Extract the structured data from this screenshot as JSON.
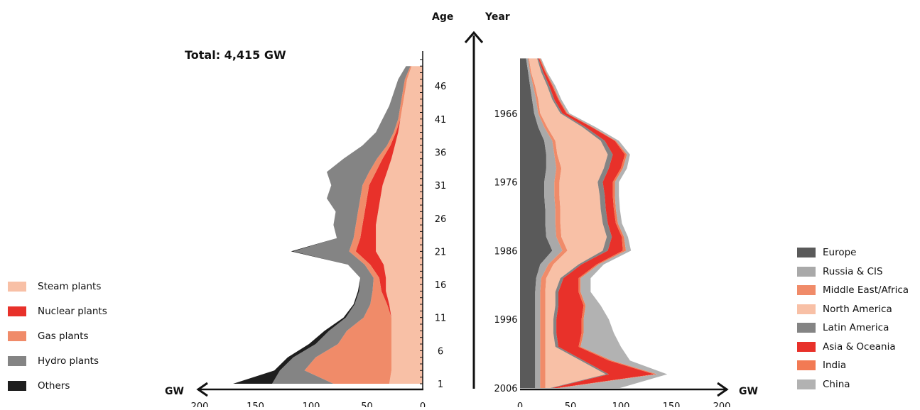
{
  "total_label": "Total: 4,415 GW",
  "axis": {
    "age_label": "Age",
    "year_label": "Year",
    "gw_left": "GW",
    "gw_right": "GW"
  },
  "chart_data": [
    {
      "type": "area",
      "title": "",
      "orientation": "horizontal-stacked-mirrored",
      "xlabel": "GW",
      "ylabel": "Age",
      "xlim": [
        200,
        0
      ],
      "ylim": [
        0,
        50
      ],
      "x_ticks": [
        200,
        150,
        100,
        50,
        0
      ],
      "y_ticks": [
        1,
        6,
        11,
        16,
        21,
        26,
        31,
        36,
        41,
        46
      ],
      "legend_position": "left",
      "ages": [
        1,
        3,
        5,
        7,
        9,
        11,
        13,
        15,
        17,
        19,
        21,
        23,
        25,
        27,
        29,
        31,
        33,
        35,
        37,
        39,
        41,
        43,
        45,
        47,
        49
      ],
      "series": [
        {
          "name": "Steam plants",
          "color": "#f8c0a6",
          "values": [
            30,
            28,
            28,
            28,
            28,
            28,
            30,
            33,
            33,
            35,
            42,
            42,
            42,
            40,
            38,
            36,
            32,
            28,
            25,
            22,
            20,
            18,
            16,
            14,
            10
          ]
        },
        {
          "name": "Nuclear plants",
          "color": "#e8312a",
          "values": [
            0,
            0,
            0,
            0,
            0,
            0,
            2,
            4,
            6,
            12,
            18,
            14,
            12,
            12,
            12,
            12,
            10,
            8,
            4,
            2,
            0,
            0,
            0,
            0,
            0
          ]
        },
        {
          "name": "Gas plants",
          "color": "#f08b69",
          "values": [
            50,
            78,
            68,
            48,
            40,
            25,
            15,
            8,
            5,
            5,
            6,
            6,
            6,
            6,
            6,
            6,
            6,
            5,
            3,
            2,
            2,
            2,
            2,
            2,
            1
          ]
        },
        {
          "name": "Hydro plants",
          "color": "#848484",
          "values": [
            55,
            22,
            20,
            20,
            16,
            16,
            14,
            12,
            12,
            15,
            50,
            15,
            20,
            20,
            30,
            28,
            38,
            30,
            22,
            16,
            14,
            10,
            8,
            6,
            4
          ]
        },
        {
          "name": "Others",
          "color": "#1e1e1e",
          "values": [
            35,
            5,
            5,
            6,
            4,
            2,
            1,
            1,
            0,
            0,
            2,
            0,
            0,
            0,
            0,
            0,
            0,
            0,
            0,
            0,
            0,
            0,
            0,
            0,
            0
          ]
        }
      ]
    },
    {
      "type": "area",
      "title": "",
      "orientation": "horizontal-stacked",
      "xlabel": "GW",
      "ylabel": "Year",
      "xlim": [
        0,
        200
      ],
      "ylim": [
        1956,
        2006
      ],
      "x_ticks": [
        0,
        50,
        100,
        150,
        200
      ],
      "y_ticks": [
        1966,
        1976,
        1986,
        1996,
        2006
      ],
      "legend_position": "right",
      "years": [
        2006,
        2004,
        2002,
        2000,
        1998,
        1996,
        1994,
        1992,
        1990,
        1988,
        1986,
        1984,
        1982,
        1980,
        1978,
        1976,
        1974,
        1972,
        1970,
        1968,
        1966,
        1964,
        1962,
        1960,
        1958
      ],
      "series": [
        {
          "name": "Europe",
          "color": "#5a5a5a",
          "values": [
            15,
            15,
            15,
            15,
            15,
            15,
            15,
            15,
            16,
            20,
            32,
            26,
            25,
            25,
            24,
            24,
            26,
            26,
            24,
            18,
            14,
            12,
            10,
            8,
            6
          ]
        },
        {
          "name": "Russia & CIS",
          "color": "#a9a9a9",
          "values": [
            5,
            5,
            5,
            5,
            5,
            5,
            5,
            5,
            5,
            8,
            10,
            10,
            10,
            10,
            10,
            10,
            10,
            8,
            8,
            6,
            4,
            4,
            3,
            2,
            2
          ]
        },
        {
          "name": "Middle East/Africa",
          "color": "#f08b69",
          "values": [
            5,
            5,
            5,
            5,
            5,
            5,
            5,
            5,
            5,
            5,
            5,
            5,
            5,
            5,
            5,
            5,
            5,
            3,
            3,
            3,
            2,
            2,
            2,
            1,
            1
          ]
        },
        {
          "name": "North America",
          "color": "#f8c0a6",
          "values": [
            5,
            60,
            35,
            10,
            8,
            8,
            10,
            10,
            14,
            25,
            35,
            45,
            42,
            40,
            40,
            38,
            42,
            50,
            45,
            35,
            20,
            14,
            12,
            10,
            8
          ]
        },
        {
          "name": "Latin America",
          "color": "#848484",
          "values": [
            2,
            3,
            3,
            3,
            3,
            3,
            3,
            3,
            3,
            3,
            5,
            5,
            5,
            5,
            5,
            5,
            5,
            5,
            4,
            3,
            2,
            2,
            2,
            2,
            1
          ]
        },
        {
          "name": "Asia & Oceania",
          "color": "#e8312a",
          "values": [
            5,
            45,
            25,
            20,
            25,
            25,
            25,
            20,
            15,
            15,
            15,
            10,
            8,
            8,
            8,
            10,
            12,
            12,
            10,
            6,
            4,
            4,
            3,
            2,
            1
          ]
        },
        {
          "name": "India",
          "color": "#f27a54",
          "values": [
            2,
            3,
            3,
            2,
            2,
            2,
            2,
            2,
            2,
            2,
            3,
            2,
            2,
            2,
            2,
            2,
            2,
            2,
            1,
            1,
            1,
            1,
            1,
            1,
            1
          ]
        },
        {
          "name": "China",
          "color": "#b2b2b2",
          "values": [
            60,
            10,
            18,
            40,
            30,
            25,
            15,
            10,
            10,
            5,
            5,
            4,
            4,
            4,
            4,
            4,
            4,
            3,
            3,
            3,
            2,
            2,
            2,
            1,
            1
          ]
        }
      ]
    }
  ]
}
